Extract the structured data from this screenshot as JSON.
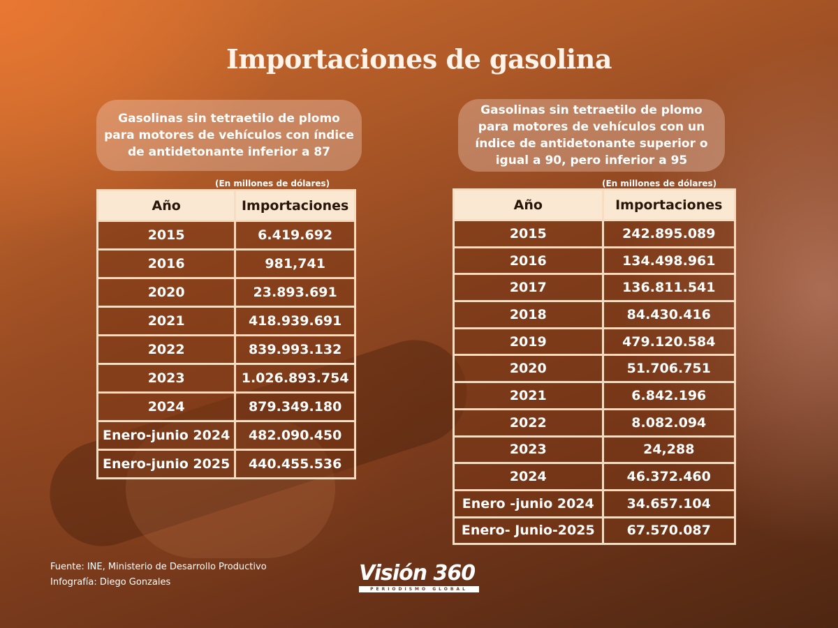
{
  "title": "Importaciones de gasolina",
  "left": {
    "description": "Gasolinas sin tetraetilo de plomo para motores de vehículos con índice de antidetonante inferior a 87",
    "unit": "(En millones de dólares)",
    "headers": [
      "Año",
      "Importaciones"
    ],
    "rows": [
      [
        "2015",
        "6.419.692"
      ],
      [
        "2016",
        "981,741"
      ],
      [
        "2020",
        "23.893.691"
      ],
      [
        "2021",
        "418.939.691"
      ],
      [
        "2022",
        "839.993.132"
      ],
      [
        "2023",
        "1.026.893.754"
      ],
      [
        "2024",
        "879.349.180"
      ],
      [
        "Enero-junio 2024",
        "482.090.450"
      ],
      [
        "Enero-junio 2025",
        "440.455.536"
      ]
    ]
  },
  "right": {
    "description": "Gasolinas sin tetraetilo de plomo para motores de vehículos con un índice de antidetonante superior o igual a 90, pero inferior a 95",
    "unit": "(En millones de dólares)",
    "headers": [
      "Año",
      "Importaciones"
    ],
    "rows": [
      [
        "2015",
        "242.895.089"
      ],
      [
        "2016",
        "134.498.961"
      ],
      [
        "2017",
        "136.811.541"
      ],
      [
        "2018",
        "84.430.416"
      ],
      [
        "2019",
        "479.120.584"
      ],
      [
        "2020",
        "51.706.751"
      ],
      [
        "2021",
        "6.842.196"
      ],
      [
        "2022",
        "8.082.094"
      ],
      [
        "2023",
        "24,288"
      ],
      [
        "2024",
        "46.372.460"
      ],
      [
        "Enero -junio 2024",
        "34.657.104"
      ],
      [
        "Enero- Junio-2025",
        "67.570.087"
      ]
    ]
  },
  "footer": {
    "source": "Fuente: INE, Ministerio de Desarrollo Productivo",
    "credit": "Infografía: Diego Gonzales"
  },
  "logo": {
    "name": "Visión 360",
    "tagline": "PERIODISMO GLOBAL"
  }
}
